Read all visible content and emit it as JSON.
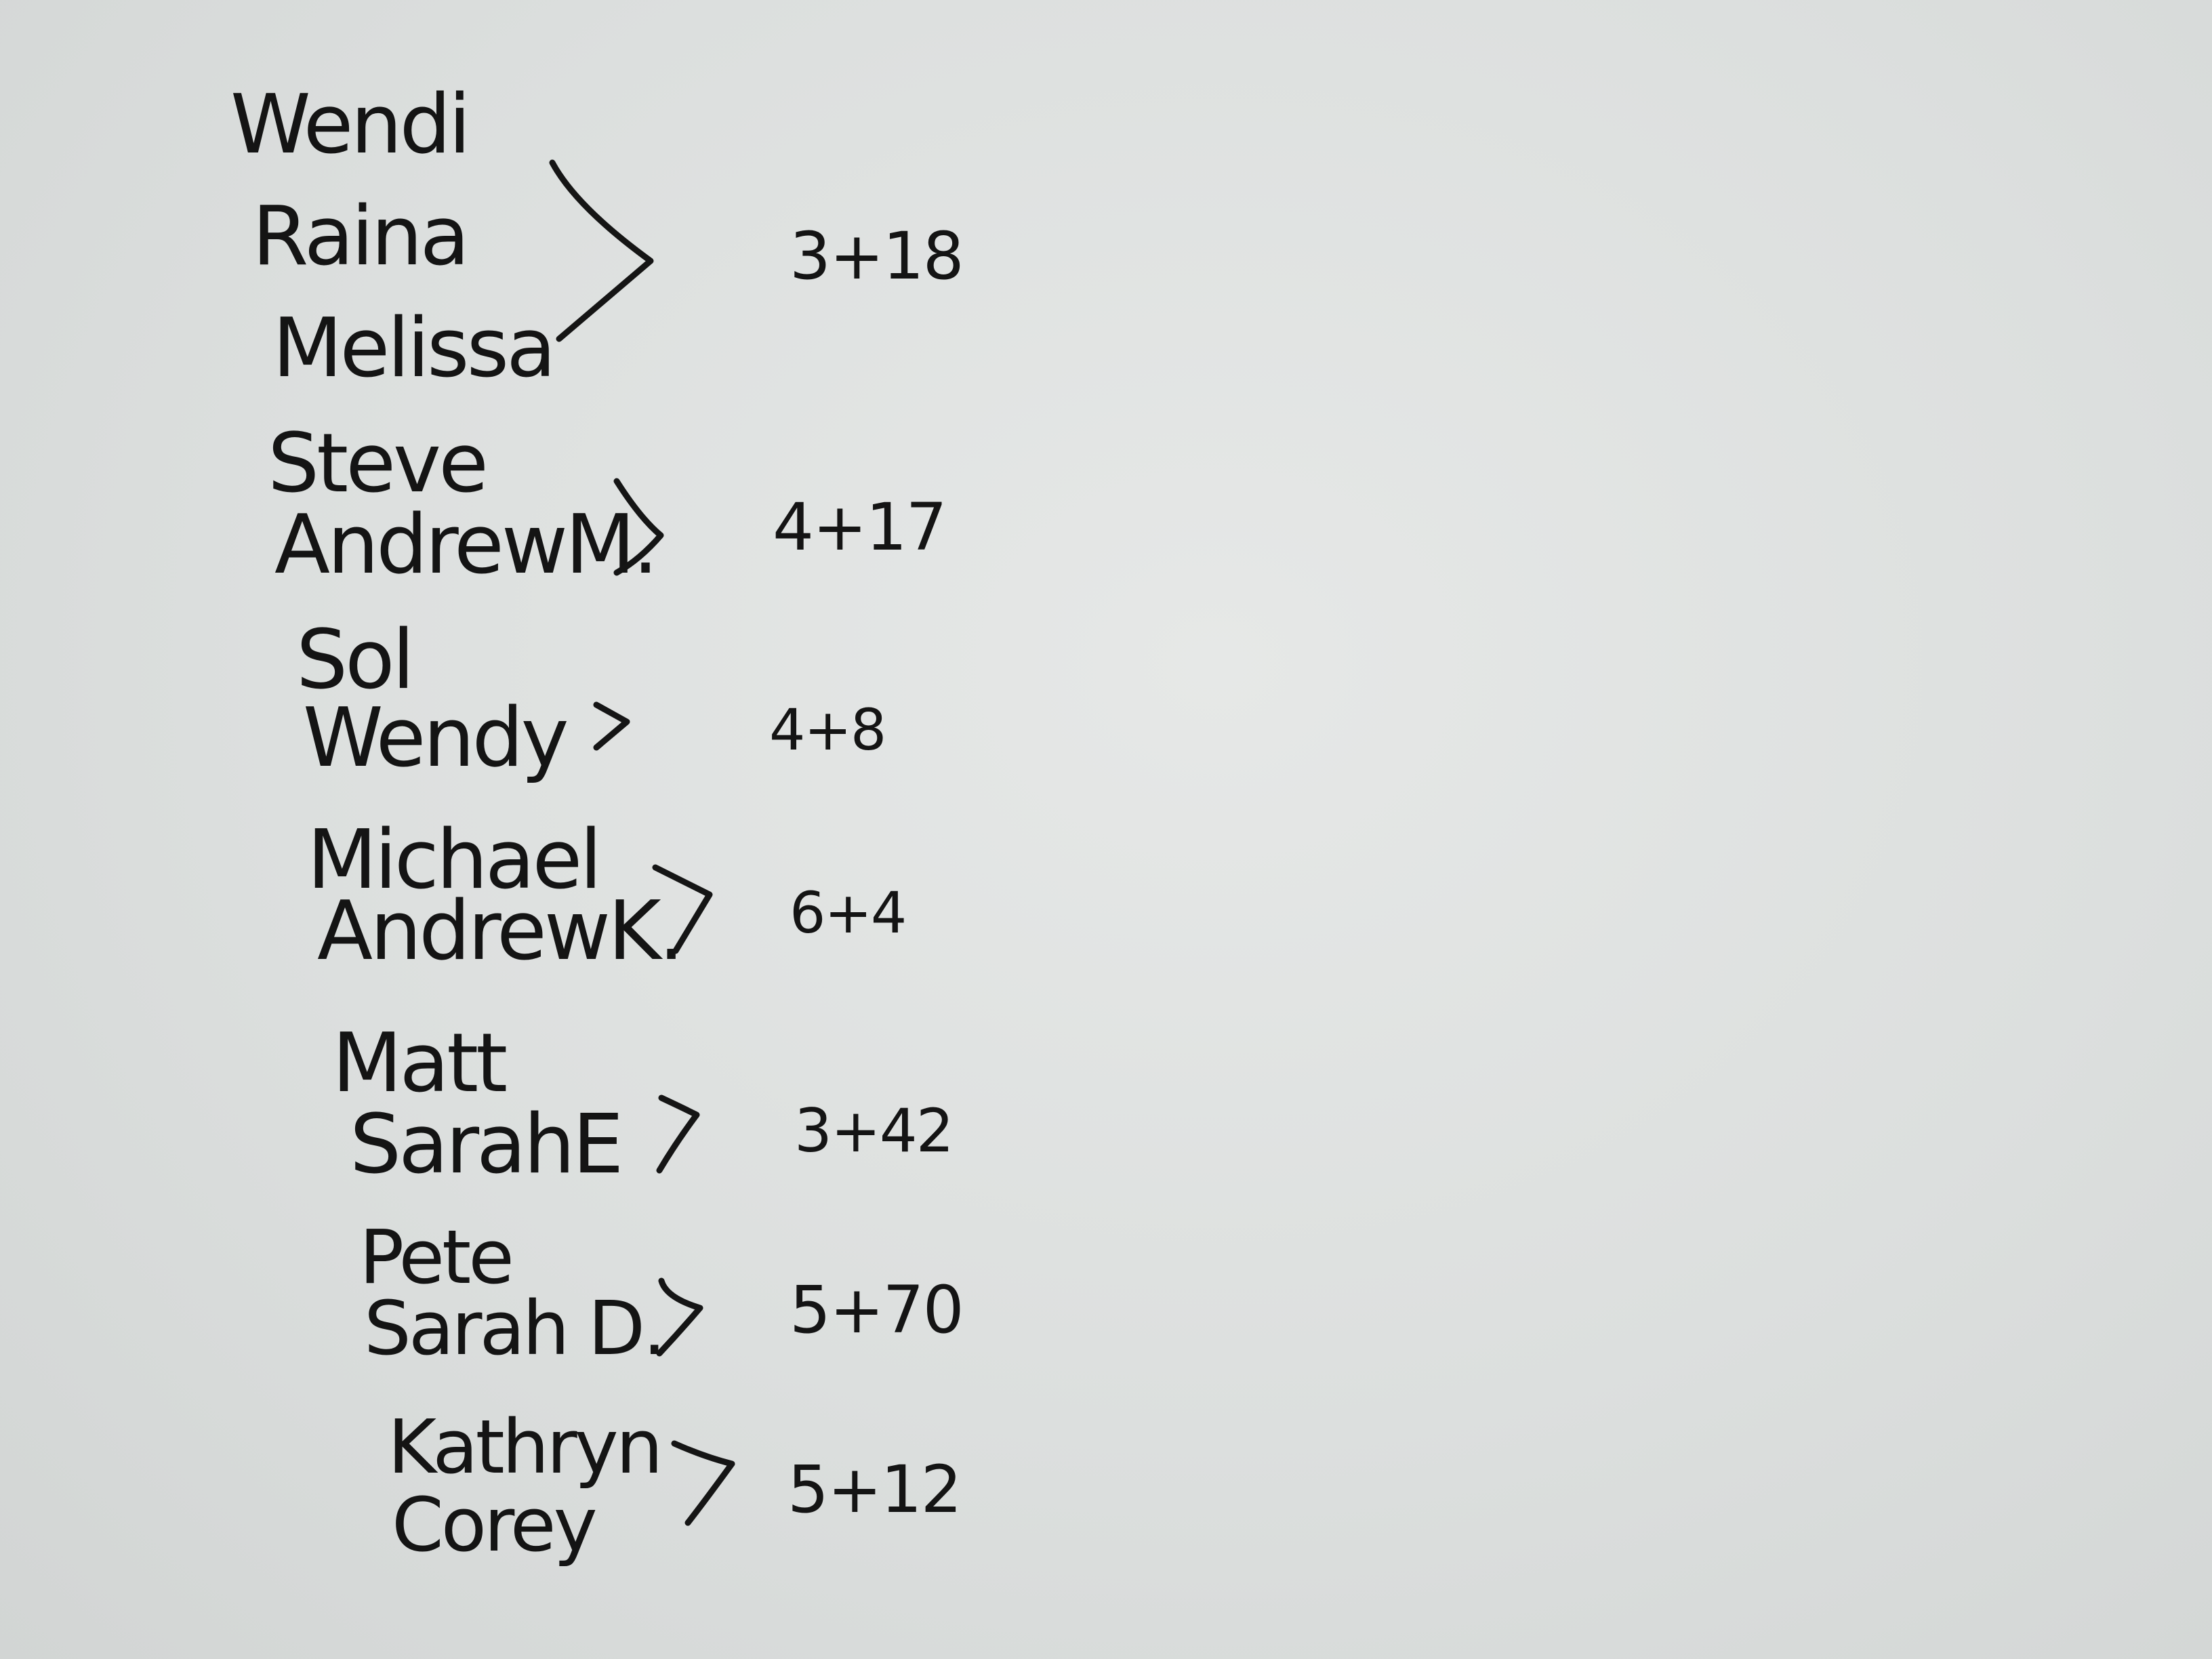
{
  "whiteboard": {
    "groups": [
      {
        "names": [
          "Wendi",
          "Raina",
          "Melissa"
        ],
        "sum": "3+18"
      },
      {
        "names": [
          "Steve",
          "AndrewM."
        ],
        "sum": "4+17"
      },
      {
        "names": [
          "Sol",
          "Wendy"
        ],
        "sum": "4+8"
      },
      {
        "names": [
          "Michael",
          "AndrewK."
        ],
        "sum": "6+4"
      },
      {
        "names": [
          "Matt",
          "SarahE"
        ],
        "sum": "3+42"
      },
      {
        "names": [
          "Pete",
          "Sarah D."
        ],
        "sum": "5+70"
      },
      {
        "names": [
          "Kathryn",
          "Corey"
        ],
        "sum": "5+12"
      }
    ],
    "ink_color": "#141414",
    "board_color": "#dfe2e1"
  }
}
